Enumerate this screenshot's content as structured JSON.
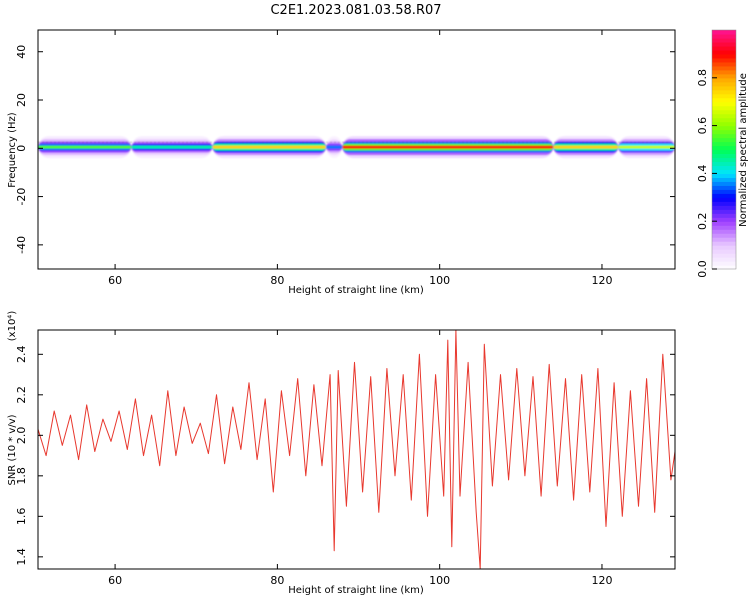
{
  "chart_data": [
    {
      "type": "heatmap",
      "title": "C2E1.2023.081.03.58.R07",
      "xlabel": "Height of straight line (km)",
      "ylabel": "Frequency (Hz)",
      "xlim": [
        50.5,
        129
      ],
      "ylim": [
        -50,
        49
      ],
      "xticks": [
        60,
        80,
        100,
        120
      ],
      "yticks": [
        40,
        20,
        0,
        -20,
        -40
      ],
      "colorbar": {
        "label": "Normalized spectral amplitude",
        "range": [
          0,
          1
        ],
        "ticks": [
          0.0,
          0.2,
          0.4,
          0.6,
          0.8
        ],
        "tick_labels": [
          "0.0",
          "0.2",
          "0.4",
          "0.6",
          "0.8"
        ],
        "colors": [
          "#ffffff",
          "#e8c8ff",
          "#a040ff",
          "#0000ff",
          "#00e5ff",
          "#00ff55",
          "#90ff00",
          "#ffff00",
          "#ffa500",
          "#ff0000",
          "#ff1493"
        ]
      },
      "band": {
        "center_hz": 0.5,
        "segments": [
          {
            "x": [
              50.5,
              62
            ],
            "amp": 0.55
          },
          {
            "x": [
              62,
              72
            ],
            "amp": 0.45
          },
          {
            "x": [
              72,
              86
            ],
            "amp": 0.75
          },
          {
            "x": [
              86,
              88
            ],
            "amp": 0.35
          },
          {
            "x": [
              88,
              114
            ],
            "amp": 0.9
          },
          {
            "x": [
              114,
              122
            ],
            "amp": 0.75
          },
          {
            "x": [
              122,
              129
            ],
            "amp": 0.65
          }
        ]
      }
    },
    {
      "type": "line",
      "xlabel": "Height of straight line (km)",
      "ylabel": "SNR (10 * v/v)",
      "yunit": "(x10⁴)",
      "xlim": [
        50.5,
        129
      ],
      "ylim": [
        1.34,
        2.52
      ],
      "xticks": [
        60,
        80,
        100,
        120
      ],
      "yticks": [
        1.4,
        1.6,
        1.8,
        2.0,
        2.2,
        2.4
      ],
      "ytick_labels": [
        "1.4",
        "1.6",
        "1.8",
        "2.0",
        "2.2",
        "2.4"
      ],
      "color": "#e8382e",
      "series": [
        {
          "x": [
            50.5,
            51.5,
            52.5,
            53.5,
            54.5,
            55.5,
            56.5,
            57.5,
            58.5,
            59.5,
            60.5,
            61.5,
            62.5,
            63.5,
            64.5,
            65.5,
            66.5,
            67.5,
            68.5,
            69.5,
            70.5,
            71.5,
            72.5,
            73.5,
            74.5,
            75.5,
            76.5,
            77.5,
            78.5,
            79.5,
            80.5,
            81.5,
            82.5,
            83.5,
            84.5,
            85.5,
            86.5,
            87.0,
            87.5,
            88.5,
            89.5,
            90.5,
            91.5,
            92.5,
            93.5,
            94.5,
            95.5,
            96.5,
            97.5,
            98.5,
            99.5,
            100.5,
            101.0,
            101.5,
            102.0,
            102.5,
            103.5,
            104.5,
            105.0,
            105.5,
            106.5,
            107.5,
            108.5,
            109.5,
            110.5,
            111.5,
            112.5,
            113.5,
            114.5,
            115.5,
            116.5,
            117.5,
            118.5,
            119.5,
            120.5,
            121.5,
            122.5,
            123.5,
            124.5,
            125.5,
            126.5,
            127.5,
            128.5,
            129.0
          ],
          "values": [
            2.03,
            1.9,
            2.12,
            1.95,
            2.1,
            1.88,
            2.15,
            1.92,
            2.08,
            1.97,
            2.12,
            1.93,
            2.18,
            1.9,
            2.1,
            1.85,
            2.22,
            1.9,
            2.14,
            1.96,
            2.06,
            1.91,
            2.2,
            1.86,
            2.14,
            1.93,
            2.26,
            1.88,
            2.18,
            1.72,
            2.22,
            1.9,
            2.28,
            1.8,
            2.25,
            1.85,
            2.3,
            1.43,
            2.32,
            1.65,
            2.36,
            1.72,
            2.29,
            1.62,
            2.33,
            1.8,
            2.3,
            1.68,
            2.4,
            1.6,
            2.3,
            1.7,
            2.47,
            1.45,
            2.52,
            1.7,
            2.36,
            1.62,
            1.34,
            2.45,
            1.75,
            2.3,
            1.78,
            2.33,
            1.8,
            2.29,
            1.7,
            2.35,
            1.75,
            2.28,
            1.68,
            2.3,
            1.72,
            2.33,
            1.55,
            2.26,
            1.6,
            2.22,
            1.65,
            2.28,
            1.62,
            2.4,
            1.78,
            1.92
          ]
        }
      ]
    }
  ]
}
